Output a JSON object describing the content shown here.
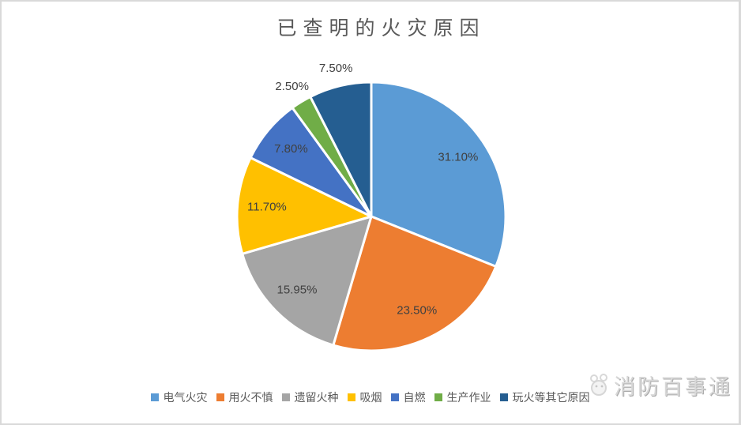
{
  "frame": {
    "background": "#ffffff",
    "border_color": "#d9d9d9"
  },
  "title": "已查明的火灾原因",
  "watermark": {
    "text": "消防百事通",
    "icon": "mascot-face-icon"
  },
  "chart_data": {
    "type": "pie",
    "title": "已查明的火灾原因",
    "categories": [
      "电气火灾",
      "用火不慎",
      "遗留火种",
      "吸烟",
      "自燃",
      "生产作业",
      "玩火等其它原因"
    ],
    "values": [
      31.1,
      23.5,
      15.95,
      11.7,
      7.8,
      2.5,
      7.5
    ],
    "data_labels": [
      "31.10%",
      "23.50%",
      "15.95%",
      "11.70%",
      "7.80%",
      "2.50%",
      "7.50%"
    ],
    "colors": [
      "#5B9BD5",
      "#ED7D31",
      "#A5A5A5",
      "#FFC000",
      "#4472C4",
      "#70AD47",
      "#255E91"
    ],
    "label_placement": [
      "inside",
      "inside",
      "inside",
      "inside",
      "inside",
      "outside",
      "outside"
    ],
    "label_color": "#404040",
    "slice_border_color": "#ffffff",
    "start_angle": "12-oclock",
    "direction": "clockwise",
    "legend_position": "bottom",
    "title_color": "#595959",
    "legend_text_color": "#595959"
  }
}
